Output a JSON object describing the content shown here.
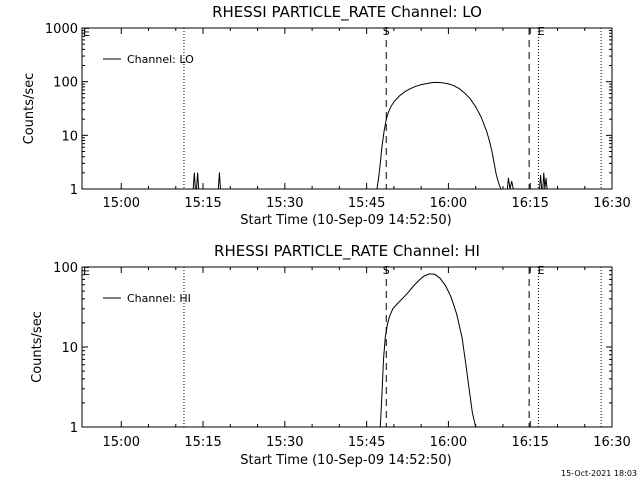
{
  "footer": {
    "timestamp": "15-Oct-2021 18:03"
  },
  "colors": {
    "background": "#ffffff",
    "foreground": "#000000"
  },
  "chart_data": [
    {
      "type": "line",
      "title": "RHESSI PARTICLE_RATE Channel: LO",
      "xlabel": "Start Time (10-Sep-09 14:52:50)",
      "ylabel": "Counts/sec",
      "yscale": "log",
      "ylim": [
        1,
        1000
      ],
      "y_ticks": [
        {
          "value": 1,
          "label": "1"
        },
        {
          "value": 10,
          "label": "10"
        },
        {
          "value": 100,
          "label": "100"
        },
        {
          "value": 1000,
          "label": "1000"
        }
      ],
      "xlim_minutes": [
        892.8,
        990.0
      ],
      "x_ticks": [
        {
          "value": 900,
          "label": "15:00"
        },
        {
          "value": 915,
          "label": "15:15"
        },
        {
          "value": 930,
          "label": "15:30"
        },
        {
          "value": 945,
          "label": "15:45"
        },
        {
          "value": 960,
          "label": "16:00"
        },
        {
          "value": 975,
          "label": "16:15"
        },
        {
          "value": 990,
          "label": "16:30"
        }
      ],
      "legend": {
        "label": "Channel: LO",
        "position": "top-left"
      },
      "dotted_lines_minutes": [
        911.5,
        976.5,
        988.0
      ],
      "dashed_lines": [
        {
          "minute": 948.6,
          "label": "S"
        },
        {
          "minute": 974.8,
          "label": "E"
        }
      ],
      "corner_markers": [
        {
          "label": "E",
          "position": "top-left"
        }
      ],
      "series": [
        {
          "name": "Channel: LO",
          "x": [
            913.0,
            913.2,
            913.4,
            913.6,
            913.8,
            914.0,
            914.2,
            914.4,
            914.6,
            914.8,
            915.0,
            917.6,
            917.8,
            918.0,
            918.2,
            918.4,
            946.9,
            947.2,
            947.5,
            947.8,
            948.2,
            948.6,
            949.0,
            949.5,
            950,
            951,
            952,
            953,
            954,
            955,
            956,
            957,
            958,
            959,
            960,
            961,
            962,
            963,
            964,
            965,
            966,
            967,
            967.5,
            968,
            968.4,
            968.8,
            969.2,
            969.6,
            970.0,
            970.4,
            970.7,
            970.8,
            971.0,
            971.3,
            971.6,
            971.9,
            976.7,
            976.9,
            977.1,
            977.3,
            977.5,
            977.7,
            977.9,
            978.1
          ],
          "y": [
            1,
            1,
            2,
            1,
            1,
            2,
            1,
            1,
            1,
            1,
            1,
            1,
            1,
            2,
            1,
            1,
            1,
            1.6,
            3,
            6,
            12,
            20,
            27,
            35,
            42,
            54,
            65,
            74,
            82,
            88,
            92,
            96,
            97,
            95,
            91,
            84,
            74,
            61,
            48,
            34,
            22,
            12,
            8,
            5,
            3,
            1.8,
            1.3,
            1,
            1,
            1,
            1,
            1,
            1.6,
            1,
            1.4,
            1,
            1,
            1.8,
            1,
            1,
            2,
            1,
            1.6,
            1
          ]
        }
      ]
    },
    {
      "type": "line",
      "title": "RHESSI PARTICLE_RATE Channel: HI",
      "xlabel": "Start Time (10-Sep-09 14:52:50)",
      "ylabel": "Counts/sec",
      "yscale": "log",
      "ylim": [
        1,
        100
      ],
      "y_ticks": [
        {
          "value": 1,
          "label": "1"
        },
        {
          "value": 10,
          "label": "10"
        },
        {
          "value": 100,
          "label": "100"
        }
      ],
      "xlim_minutes": [
        892.8,
        990.0
      ],
      "x_ticks": [
        {
          "value": 900,
          "label": "15:00"
        },
        {
          "value": 915,
          "label": "15:15"
        },
        {
          "value": 930,
          "label": "15:30"
        },
        {
          "value": 945,
          "label": "15:45"
        },
        {
          "value": 960,
          "label": "16:00"
        },
        {
          "value": 975,
          "label": "16:15"
        },
        {
          "value": 990,
          "label": "16:30"
        }
      ],
      "legend": {
        "label": "Channel: HI",
        "position": "top-left"
      },
      "dotted_lines_minutes": [
        911.5,
        976.5,
        988.0
      ],
      "dashed_lines": [
        {
          "minute": 948.6,
          "label": "S"
        },
        {
          "minute": 974.8,
          "label": "E"
        }
      ],
      "corner_markers": [
        {
          "label": "E",
          "position": "top-left"
        }
      ],
      "series": [
        {
          "name": "Channel: HI",
          "x": [
            947.5,
            947.8,
            948.1,
            948.4,
            948.8,
            949.2,
            949.8,
            950.5,
            951.5,
            952.5,
            953.5,
            954.5,
            955.5,
            956.5,
            957.5,
            958.5,
            959.5,
            960.5,
            961.5,
            962.5,
            963.2,
            963.8,
            964.4,
            965.0
          ],
          "y": [
            1,
            2.5,
            7,
            13,
            19,
            24,
            30,
            34,
            40,
            47,
            57,
            67,
            77,
            82,
            81,
            72,
            58,
            42,
            26,
            13,
            6,
            3,
            1.5,
            1
          ]
        }
      ]
    }
  ]
}
